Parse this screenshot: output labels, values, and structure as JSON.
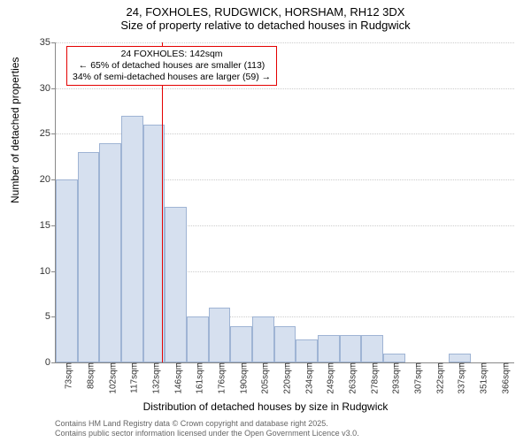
{
  "title": "24, FOXHOLES, RUDGWICK, HORSHAM, RH12 3DX",
  "subtitle": "Size of property relative to detached houses in Rudgwick",
  "chart": {
    "type": "histogram",
    "ylabel": "Number of detached properties",
    "xlabel": "Distribution of detached houses by size in Rudgwick",
    "ylim": [
      0,
      35
    ],
    "ytick_step": 5,
    "yticks": [
      0,
      5,
      10,
      15,
      20,
      25,
      30,
      35
    ],
    "categories": [
      "73sqm",
      "88sqm",
      "102sqm",
      "117sqm",
      "132sqm",
      "146sqm",
      "161sqm",
      "176sqm",
      "190sqm",
      "205sqm",
      "220sqm",
      "234sqm",
      "249sqm",
      "263sqm",
      "278sqm",
      "293sqm",
      "307sqm",
      "322sqm",
      "337sqm",
      "351sqm",
      "366sqm"
    ],
    "values": [
      20,
      23,
      24,
      27,
      26,
      17,
      5,
      6,
      4,
      5,
      4,
      2.5,
      3,
      3,
      3,
      1,
      0,
      0,
      1,
      0,
      0
    ],
    "bar_fill": "#d6e0ef",
    "bar_stroke": "#9fb4d4",
    "grid_color": "#cccccc",
    "background_color": "#ffffff",
    "reference_line": {
      "position_index": 4.85,
      "color": "#e40000"
    },
    "annotation": {
      "line1": "24 FOXHOLES: 142sqm",
      "line2": "← 65% of detached houses are smaller (113)",
      "line3": "34% of semi-detached houses are larger (59) →",
      "border_color": "#e40000"
    }
  },
  "footer": {
    "line1": "Contains HM Land Registry data © Crown copyright and database right 2025.",
    "line2": "Contains public sector information licensed under the Open Government Licence v3.0."
  }
}
